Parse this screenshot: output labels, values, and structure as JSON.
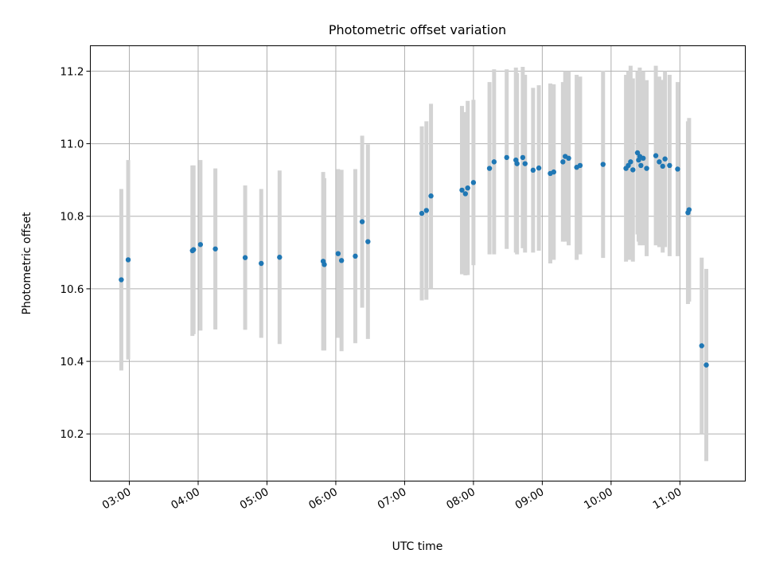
{
  "chart_data": {
    "type": "scatter",
    "title": "Photometric offset variation",
    "xlabel": "UTC time",
    "ylabel": "Photometric offset",
    "x_axis_type": "time",
    "xlim": [
      "02:26",
      "11:57"
    ],
    "ylim": [
      10.07,
      11.27
    ],
    "xticks": [
      "03:00",
      "04:00",
      "05:00",
      "06:00",
      "07:00",
      "08:00",
      "09:00",
      "10:00",
      "11:00"
    ],
    "yticks": [
      10.2,
      10.4,
      10.6,
      10.8,
      11.0,
      11.2
    ],
    "grid": true,
    "legend": "none",
    "colors": {
      "point": "#1f77b4",
      "errorbar": "#d3d3d3",
      "grid": "#b0b0b0"
    },
    "points": [
      {
        "x": "02:53",
        "y": 10.625,
        "lo": 10.375,
        "hi": 10.875
      },
      {
        "x": "02:59",
        "y": 10.68,
        "lo": 10.405,
        "hi": 10.955
      },
      {
        "x": "03:55",
        "y": 10.705,
        "lo": 10.47,
        "hi": 10.94
      },
      {
        "x": "03:56",
        "y": 10.708,
        "lo": 10.475,
        "hi": 10.94
      },
      {
        "x": "04:02",
        "y": 10.722,
        "lo": 10.485,
        "hi": 10.955
      },
      {
        "x": "04:15",
        "y": 10.71,
        "lo": 10.488,
        "hi": 10.932
      },
      {
        "x": "04:41",
        "y": 10.686,
        "lo": 10.487,
        "hi": 10.885
      },
      {
        "x": "04:55",
        "y": 10.67,
        "lo": 10.465,
        "hi": 10.875
      },
      {
        "x": "05:11",
        "y": 10.687,
        "lo": 10.448,
        "hi": 10.926
      },
      {
        "x": "05:49",
        "y": 10.676,
        "lo": 10.43,
        "hi": 10.922
      },
      {
        "x": "05:50",
        "y": 10.667,
        "lo": 10.43,
        "hi": 10.905
      },
      {
        "x": "06:02",
        "y": 10.697,
        "lo": 10.465,
        "hi": 10.93
      },
      {
        "x": "06:05",
        "y": 10.678,
        "lo": 10.428,
        "hi": 10.928
      },
      {
        "x": "06:17",
        "y": 10.69,
        "lo": 10.45,
        "hi": 10.93
      },
      {
        "x": "06:23",
        "y": 10.785,
        "lo": 10.548,
        "hi": 11.022
      },
      {
        "x": "06:28",
        "y": 10.73,
        "lo": 10.462,
        "hi": 10.998
      },
      {
        "x": "07:15",
        "y": 10.808,
        "lo": 10.568,
        "hi": 11.048
      },
      {
        "x": "07:19",
        "y": 10.816,
        "lo": 10.57,
        "hi": 11.062
      },
      {
        "x": "07:23",
        "y": 10.856,
        "lo": 10.602,
        "hi": 11.11
      },
      {
        "x": "07:50",
        "y": 10.872,
        "lo": 10.64,
        "hi": 11.104
      },
      {
        "x": "07:53",
        "y": 10.862,
        "lo": 10.637,
        "hi": 11.087
      },
      {
        "x": "07:55",
        "y": 10.878,
        "lo": 10.638,
        "hi": 11.118
      },
      {
        "x": "08:00",
        "y": 10.893,
        "lo": 10.665,
        "hi": 11.121
      },
      {
        "x": "08:14",
        "y": 10.932,
        "lo": 10.695,
        "hi": 11.17
      },
      {
        "x": "08:18",
        "y": 10.95,
        "lo": 10.695,
        "hi": 11.205
      },
      {
        "x": "08:29",
        "y": 10.962,
        "lo": 10.71,
        "hi": 11.205
      },
      {
        "x": "08:37",
        "y": 10.955,
        "lo": 10.7,
        "hi": 11.21
      },
      {
        "x": "08:38",
        "y": 10.945,
        "lo": 10.695,
        "hi": 11.195
      },
      {
        "x": "08:43",
        "y": 10.962,
        "lo": 10.712,
        "hi": 11.212
      },
      {
        "x": "08:45",
        "y": 10.945,
        "lo": 10.7,
        "hi": 11.19
      },
      {
        "x": "08:52",
        "y": 10.927,
        "lo": 10.7,
        "hi": 11.154
      },
      {
        "x": "08:57",
        "y": 10.933,
        "lo": 10.705,
        "hi": 11.161
      },
      {
        "x": "09:07",
        "y": 10.918,
        "lo": 10.67,
        "hi": 11.166
      },
      {
        "x": "09:10",
        "y": 10.922,
        "lo": 10.68,
        "hi": 11.164
      },
      {
        "x": "09:18",
        "y": 10.95,
        "lo": 10.73,
        "hi": 11.17
      },
      {
        "x": "09:20",
        "y": 10.965,
        "lo": 10.73,
        "hi": 11.2
      },
      {
        "x": "09:23",
        "y": 10.96,
        "lo": 10.72,
        "hi": 11.2
      },
      {
        "x": "09:30",
        "y": 10.935,
        "lo": 10.68,
        "hi": 11.19
      },
      {
        "x": "09:33",
        "y": 10.94,
        "lo": 10.695,
        "hi": 11.185
      },
      {
        "x": "09:53",
        "y": 10.943,
        "lo": 10.685,
        "hi": 11.201
      },
      {
        "x": "10:13",
        "y": 10.932,
        "lo": 10.675,
        "hi": 11.19
      },
      {
        "x": "10:15",
        "y": 10.94,
        "lo": 10.68,
        "hi": 11.2
      },
      {
        "x": "10:17",
        "y": 10.95,
        "lo": 10.68,
        "hi": 11.215
      },
      {
        "x": "10:19",
        "y": 10.928,
        "lo": 10.675,
        "hi": 11.18
      },
      {
        "x": "10:23",
        "y": 10.975,
        "lo": 10.75,
        "hi": 11.2
      },
      {
        "x": "10:24",
        "y": 10.955,
        "lo": 10.73,
        "hi": 11.18
      },
      {
        "x": "10:25",
        "y": 10.965,
        "lo": 10.72,
        "hi": 11.21
      },
      {
        "x": "10:26",
        "y": 10.94,
        "lo": 10.725,
        "hi": 11.155
      },
      {
        "x": "10:28",
        "y": 10.96,
        "lo": 10.72,
        "hi": 11.2
      },
      {
        "x": "10:31",
        "y": 10.932,
        "lo": 10.69,
        "hi": 11.175
      },
      {
        "x": "10:39",
        "y": 10.967,
        "lo": 10.72,
        "hi": 11.215
      },
      {
        "x": "10:42",
        "y": 10.95,
        "lo": 10.715,
        "hi": 11.185
      },
      {
        "x": "10:45",
        "y": 10.938,
        "lo": 10.7,
        "hi": 11.176
      },
      {
        "x": "10:47",
        "y": 10.958,
        "lo": 10.715,
        "hi": 11.2
      },
      {
        "x": "10:51",
        "y": 10.94,
        "lo": 10.69,
        "hi": 11.19
      },
      {
        "x": "10:58",
        "y": 10.93,
        "lo": 10.69,
        "hi": 11.17
      },
      {
        "x": "11:07",
        "y": 10.81,
        "lo": 10.558,
        "hi": 11.062
      },
      {
        "x": "11:08",
        "y": 10.818,
        "lo": 10.565,
        "hi": 11.071
      },
      {
        "x": "11:19",
        "y": 10.443,
        "lo": 10.2,
        "hi": 10.686
      },
      {
        "x": "11:23",
        "y": 10.39,
        "lo": 10.125,
        "hi": 10.655
      }
    ]
  }
}
